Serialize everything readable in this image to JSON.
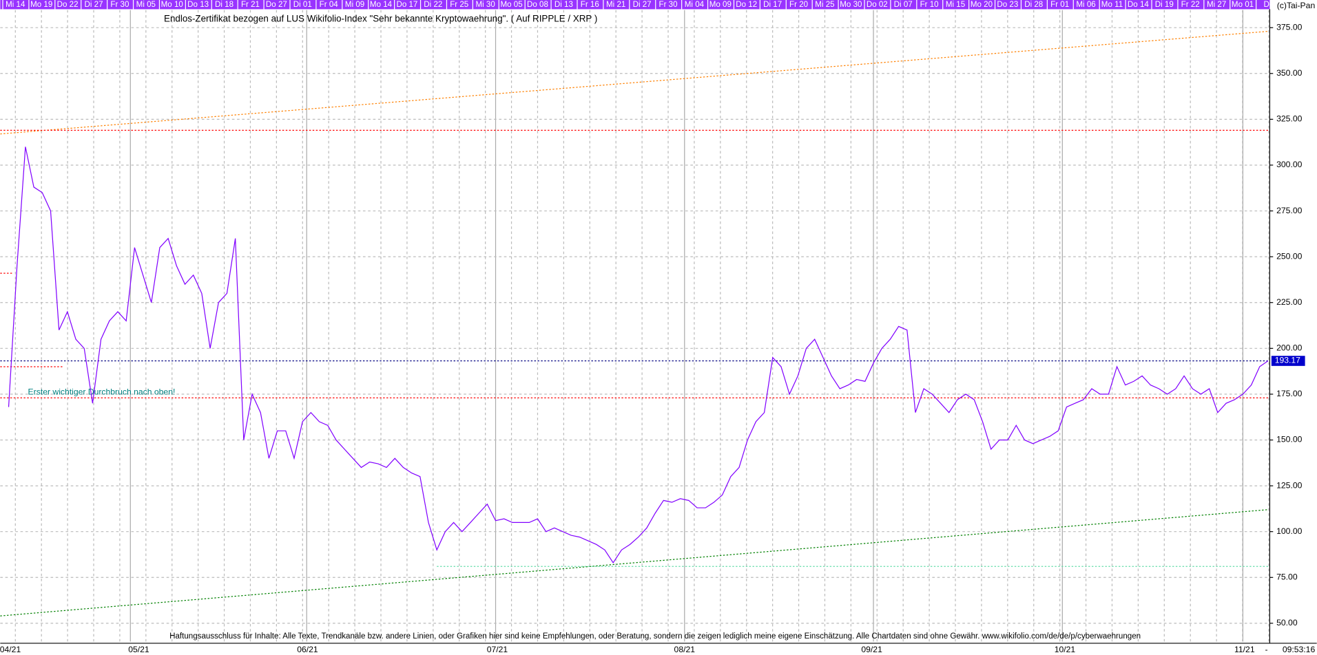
{
  "chart_data": {
    "type": "line",
    "title": "Endlos-Zertifikat bezogen auf LUS Wikifolio-Index \"Sehr bekannte Kryptowaehrung\". ( Auf RIPPLE / XRP )",
    "copyright": "(c)Tai-Pan",
    "footer": "Haftungsausschluss für Inhalte: Alle Texte, Trendkanäle bzw. andere Linien, oder Grafiken hier sind keine Empfehlungen, oder Beratung, sondern die zeigen lediglich meine eigene Einschätzung. Alle Chartdaten sind ohne Gewähr.  www.wikifolio.com/de/de/p/cyberwaehrungen",
    "annotation": "Erster wichtiger Durchbruch nach oben!",
    "time": "09:53:16",
    "top_dates": [
      "Mi 14",
      "Mo 19",
      "Do 22",
      "Di 27",
      "Fr 30",
      "Mi 05",
      "Mo 10",
      "Do 13",
      "Di 18",
      "Fr 21",
      "Do 27",
      "Di 01",
      "Fr 04",
      "Mi 09",
      "Mo 14",
      "Do 17",
      "Di 22",
      "Fr 25",
      "Mi 30",
      "Mo 05",
      "Do 08",
      "Di 13",
      "Fr 16",
      "Mi 21",
      "Di 27",
      "Fr 30",
      "Mi 04",
      "Mo 09",
      "Do 12",
      "Di 17",
      "Fr 20",
      "Mi 25",
      "Mo 30",
      "Do 02",
      "Di 07",
      "Fr 10",
      "Mi 15",
      "Mo 20",
      "Do 23",
      "Di 28",
      "Fr 01",
      "Mi 06",
      "Mo 11",
      "Do 14",
      "Di 19",
      "Fr 22",
      "Mi 27",
      "Mo 01",
      "Do"
    ],
    "months": [
      "04/21",
      "05/21",
      "06/21",
      "07/21",
      "08/21",
      "09/21",
      "10/21",
      "11/21"
    ],
    "series": [
      {
        "color": "#8000ff",
        "values": [
          168,
          245,
          310,
          288,
          285,
          275,
          210,
          220,
          205,
          200,
          170,
          205,
          215,
          220,
          215,
          255,
          240,
          225,
          255,
          260,
          245,
          235,
          240,
          230,
          200,
          225,
          230,
          260,
          150,
          175,
          165,
          140,
          155,
          155,
          140,
          160,
          165,
          160,
          158,
          150,
          145,
          140,
          135,
          138,
          137,
          135,
          140,
          135,
          132,
          130,
          105,
          90,
          100,
          105,
          100,
          105,
          110,
          115,
          106,
          107,
          105,
          105,
          105,
          107,
          100,
          102,
          100,
          98,
          97,
          95,
          93,
          90,
          83,
          90,
          93,
          97,
          102,
          110,
          117,
          116,
          118,
          117,
          113,
          113,
          116,
          120,
          130,
          135,
          150,
          160,
          165,
          195,
          190,
          175,
          185,
          200,
          205,
          195,
          185,
          178,
          180,
          183,
          182,
          192,
          200,
          205,
          212,
          210,
          165,
          178,
          175,
          170,
          165,
          172,
          175,
          172,
          160,
          145,
          150,
          150,
          158,
          150,
          148,
          150,
          152,
          155,
          168,
          170,
          172,
          178,
          175,
          175,
          190,
          180,
          182,
          185,
          180,
          178,
          175,
          178,
          185,
          178,
          175,
          178,
          165,
          170,
          172,
          175,
          180,
          190,
          193.17
        ]
      }
    ],
    "last_value": {
      "value": 193.17,
      "label": "193.17"
    },
    "levels": [
      {
        "value": 319,
        "color": "#ff0000",
        "span": "full"
      },
      {
        "value": 173,
        "color": "#ff0000",
        "span": "full"
      },
      {
        "value": 193.17,
        "color": "#000080",
        "span": "full"
      },
      {
        "value": 241,
        "color": "#ff0000",
        "span": "left"
      },
      {
        "value": 190,
        "color": "#ff0000",
        "span": "early"
      },
      {
        "value": 81,
        "color": "#66ddaa",
        "span": "late"
      }
    ],
    "trendlines": [
      {
        "start": 317,
        "end": 373,
        "color": "#ff8000"
      },
      {
        "start": 54,
        "end": 112,
        "color": "#008000"
      }
    ],
    "ylim": [
      40,
      384.6
    ],
    "yticks": [
      {
        "value": 50,
        "label": "50.00"
      },
      {
        "value": 75,
        "label": "75.00"
      },
      {
        "value": 100,
        "label": "100.00"
      },
      {
        "value": 125,
        "label": "125.00"
      },
      {
        "value": 150,
        "label": "150.00"
      },
      {
        "value": 175,
        "label": "175.00"
      },
      {
        "value": 200,
        "label": "200.00"
      },
      {
        "value": 225,
        "label": "225.00"
      },
      {
        "value": 250,
        "label": "250.00"
      },
      {
        "value": 275,
        "label": "275.00"
      },
      {
        "value": 300,
        "label": "300.00"
      },
      {
        "value": 325,
        "label": "325.00"
      },
      {
        "value": 350,
        "label": "350.00"
      },
      {
        "value": 375,
        "label": "375.00"
      }
    ],
    "grid": true
  }
}
